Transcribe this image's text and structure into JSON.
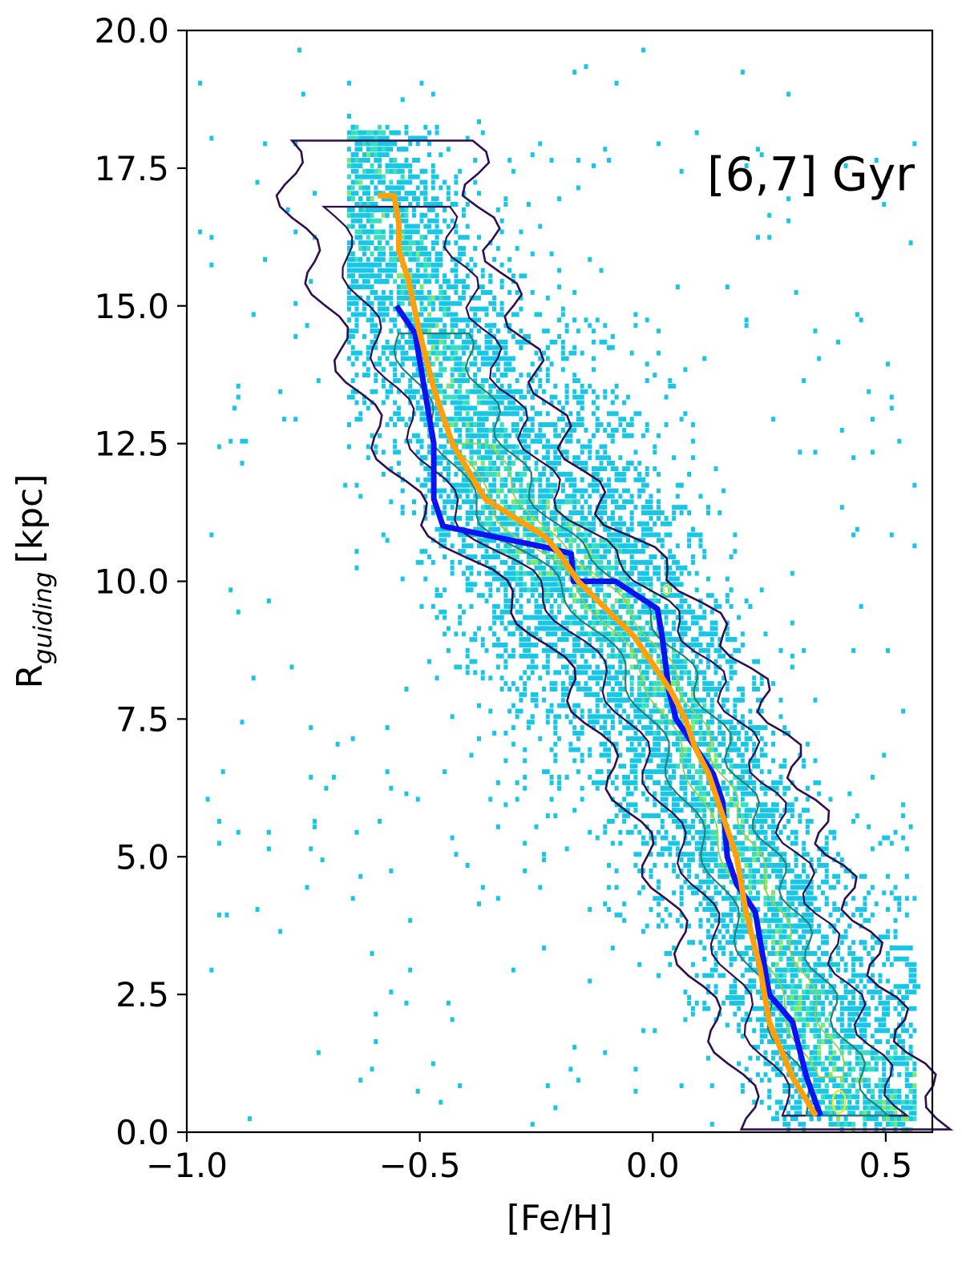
{
  "chart_data": {
    "type": "scatter",
    "title": "",
    "xlabel": "[Fe/H]",
    "ylabel_main": "R",
    "ylabel_sub": "guiding",
    "ylabel_unit": "[kpc]",
    "annotation": "[6,7] Gyr",
    "xlim": [
      -1.0,
      0.6
    ],
    "ylim": [
      0.0,
      20.0
    ],
    "xticks": [
      -1.0,
      -0.5,
      0.0,
      0.5
    ],
    "xtick_labels": [
      "−1.0",
      "−0.5",
      "0.0",
      "0.5"
    ],
    "yticks": [
      0.0,
      2.5,
      5.0,
      7.5,
      10.0,
      12.5,
      15.0,
      17.5,
      20.0
    ],
    "ytick_labels": [
      "0.0",
      "2.5",
      "5.0",
      "7.5",
      "10.0",
      "12.5",
      "15.0",
      "17.5",
      "20.0"
    ],
    "grid": false,
    "lines": [
      {
        "color": "#0a14f0",
        "x": [
          0.36,
          0.33,
          0.3,
          0.25,
          0.22,
          0.18,
          0.16,
          0.155,
          0.15,
          0.13,
          0.09,
          0.05,
          0.035,
          0.02,
          0.01,
          -0.08,
          -0.17,
          -0.175,
          -0.22,
          -0.45,
          -0.47,
          -0.47,
          -0.49,
          -0.51,
          -0.55
        ],
        "y": [
          0.3,
          1.0,
          2.0,
          2.5,
          4.0,
          4.5,
          5.0,
          5.5,
          6.0,
          6.5,
          7.0,
          7.5,
          8.0,
          9.0,
          9.5,
          10.0,
          10.0,
          10.5,
          10.6,
          11.0,
          11.5,
          12.5,
          13.5,
          14.5,
          15.0
        ]
      },
      {
        "color": "#ff9f0a",
        "x": [
          0.35,
          0.3,
          0.25,
          0.23,
          0.2,
          0.18,
          0.14,
          0.12,
          0.09,
          0.07,
          0.04,
          0.0,
          -0.04,
          -0.1,
          -0.16,
          -0.2,
          -0.23,
          -0.36,
          -0.43,
          -0.47,
          -0.5,
          -0.525,
          -0.545,
          -0.545,
          -0.555,
          -0.59
        ],
        "y": [
          0.3,
          1.0,
          2.0,
          3.0,
          4.0,
          5.0,
          6.0,
          6.5,
          7.0,
          7.5,
          8.0,
          8.5,
          9.0,
          9.5,
          10.0,
          10.5,
          10.8,
          11.5,
          12.5,
          13.5,
          14.5,
          15.5,
          16.0,
          16.5,
          17.0,
          17.0
        ]
      }
    ],
    "density_ridge": {
      "x": [
        -0.58,
        -0.52,
        -0.46,
        -0.4,
        -0.34,
        -0.28,
        -0.22,
        -0.16,
        -0.1,
        -0.04,
        0.02,
        0.08,
        0.14,
        0.2,
        0.26,
        0.32,
        0.38,
        0.42
      ],
      "y": [
        17.0,
        15.5,
        14.0,
        12.8,
        11.8,
        11.0,
        10.6,
        10.2,
        9.6,
        9.0,
        8.2,
        7.2,
        6.0,
        4.8,
        3.5,
        2.2,
        1.0,
        0.4
      ]
    },
    "colors": {
      "density_low": "#19c6e6",
      "density_mid": "#38e0c0",
      "density_high": "#7be870",
      "contour_outer": "#2e0f50",
      "contour_mid": "#27807a",
      "contour_inner": "#8ed34a",
      "contour_core": "#e8e82a"
    }
  }
}
